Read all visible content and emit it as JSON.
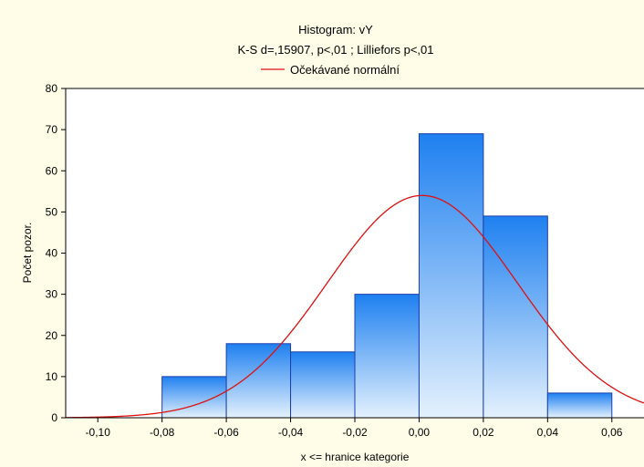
{
  "chart_data": {
    "type": "bar",
    "title": "Histogram: vY",
    "subtitle": "K-S d=,15907, p<,01 ; Lilliefors p<,01",
    "legend": {
      "label": "Očekávané normální",
      "placement": "top-center",
      "color": "#dd1111"
    },
    "xlabel": "x <= hranice kategorie",
    "ylabel": "Počet pozor.",
    "xlim": [
      -0.11,
      0.07
    ],
    "ylim": [
      0,
      80
    ],
    "x_ticks": [
      -0.1,
      -0.08,
      -0.06,
      -0.04,
      -0.02,
      0.0,
      0.02,
      0.04,
      0.06
    ],
    "x_tick_labels": [
      "-0,10",
      "-0,08",
      "-0,06",
      "-0,04",
      "-0,02",
      "0,00",
      "0,02",
      "0,04",
      "0,06"
    ],
    "y_ticks": [
      0,
      10,
      20,
      30,
      40,
      50,
      60,
      70,
      80
    ],
    "y_tick_labels": [
      "0",
      "10",
      "20",
      "30",
      "40",
      "50",
      "60",
      "70",
      "80"
    ],
    "bins": [
      {
        "from": -0.08,
        "to": -0.06,
        "count": 10
      },
      {
        "from": -0.06,
        "to": -0.04,
        "count": 18
      },
      {
        "from": -0.04,
        "to": -0.02,
        "count": 16
      },
      {
        "from": -0.02,
        "to": 0.0,
        "count": 30
      },
      {
        "from": 0.0,
        "to": 0.02,
        "count": 69
      },
      {
        "from": 0.02,
        "to": 0.04,
        "count": 49
      },
      {
        "from": 0.04,
        "to": 0.06,
        "count": 6
      }
    ],
    "normal_curve": {
      "mean": 0.001,
      "sd": 0.0296,
      "peak": 54
    },
    "grid": false,
    "colors": {
      "bar_top": "#1e80f0",
      "bar_bottom": "#e4f1fd",
      "bar_edge": "#1c3fae",
      "curve": "#dd1111",
      "background": "#fffde8"
    }
  }
}
